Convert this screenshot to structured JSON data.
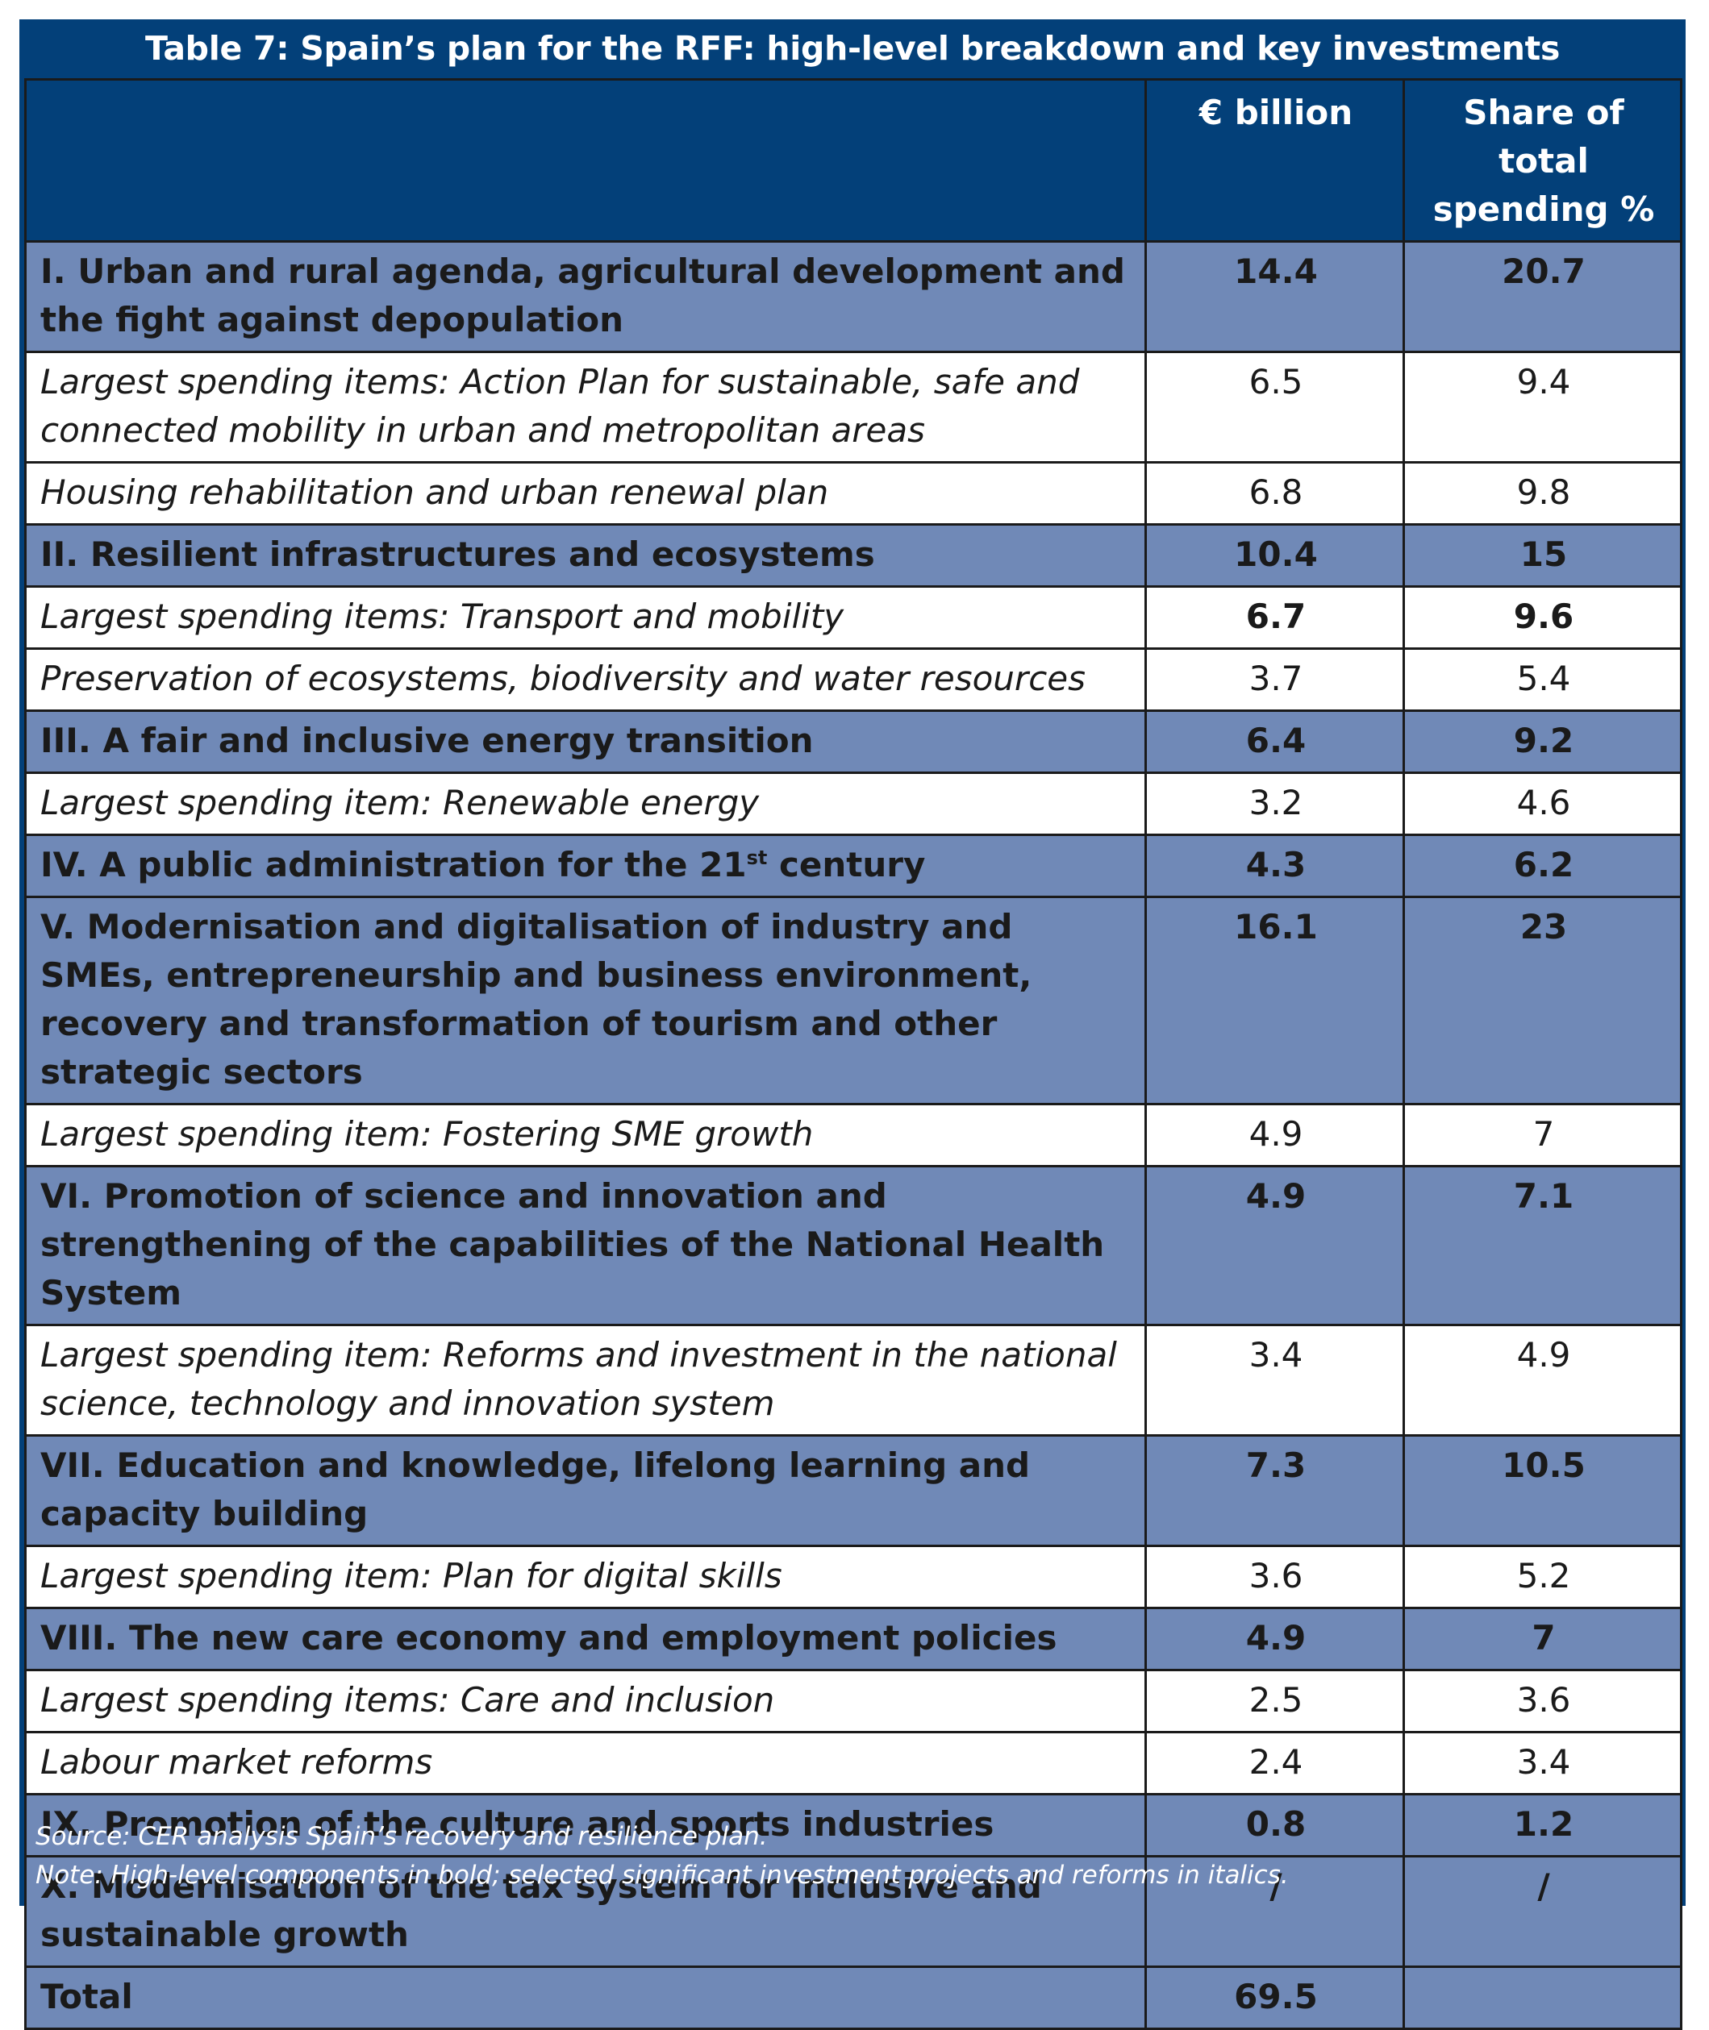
{
  "title": "Table 7: Spain’s plan for the RFF: high-level breakdown and key investments",
  "columns": {
    "label": "",
    "amount": "€ billion",
    "share_line1": "Share of total",
    "share_line2": "spending %"
  },
  "rows": [
    {
      "type": "component",
      "label": "I. Urban and rural agenda, agricultural development and the fight against depopulation",
      "amount": "14.4",
      "share": "20.7"
    },
    {
      "type": "item",
      "label": "Largest spending items: Action Plan for sustainable, safe and connected mobility in urban and metropolitan areas",
      "amount": "6.5",
      "share": "9.4"
    },
    {
      "type": "item",
      "label": "Housing rehabilitation and urban renewal plan",
      "amount": "6.8",
      "share": "9.8"
    },
    {
      "type": "component",
      "label": "II. Resilient infrastructures and ecosystems",
      "amount": "10.4",
      "share": "15"
    },
    {
      "type": "item",
      "label": "Largest spending items: Transport and mobility",
      "amount": "6.7",
      "share": "9.6",
      "bold_values": true
    },
    {
      "type": "item",
      "label": "Preservation of ecosystems, biodiversity and water resources",
      "amount": "3.7",
      "share": "5.4"
    },
    {
      "type": "component",
      "label": "III. A fair and inclusive energy transition",
      "amount": "6.4",
      "share": "9.2"
    },
    {
      "type": "item",
      "label": "Largest spending item: Renewable energy",
      "amount": "3.2",
      "share": "4.6"
    },
    {
      "type": "component",
      "label": "IV. A public administration for the 21",
      "label_sup": "st",
      "label_tail": " century",
      "amount": "4.3",
      "share": "6.2"
    },
    {
      "type": "component",
      "label": "V. Modernisation and digitalisation of industry and SMEs, entrepreneurship and business environment, recovery and transformation of tourism and other strategic sectors",
      "amount": "16.1",
      "share": "23"
    },
    {
      "type": "item",
      "label": "Largest spending item: Fostering SME growth",
      "amount": "4.9",
      "share": "7"
    },
    {
      "type": "component",
      "label": "VI. Promotion of science and innovation and strengthening of the capabilities of the National Health System",
      "amount": "4.9",
      "share": "7.1"
    },
    {
      "type": "item",
      "label": "Largest spending item: Reforms and investment in the national science, technology and innovation system",
      "amount": "3.4",
      "share": "4.9"
    },
    {
      "type": "component",
      "label": "VII. Education and knowledge, lifelong learning and capacity building",
      "amount": "7.3",
      "share": "10.5"
    },
    {
      "type": "item",
      "label": "Largest spending item: Plan for digital skills",
      "amount": "3.6",
      "share": "5.2"
    },
    {
      "type": "component",
      "label": "VIII. The new care economy and employment policies",
      "amount": "4.9",
      "share": "7"
    },
    {
      "type": "item",
      "label": "Largest spending items: Care and inclusion",
      "amount": "2.5",
      "share": "3.6"
    },
    {
      "type": "item",
      "label": "Labour market reforms",
      "amount": "2.4",
      "share": "3.4"
    },
    {
      "type": "component",
      "label": "IX. Promotion of the culture and sports industries",
      "amount": "0.8",
      "share": "1.2"
    },
    {
      "type": "component",
      "label": "X. Modernisation of the tax system for inclusive and sustainable growth",
      "amount": "/",
      "share": "/"
    },
    {
      "type": "total",
      "label": "Total",
      "amount": "69.5",
      "share": ""
    }
  ],
  "notes": {
    "source": "Source: CER analysis Spain’s recovery and resilience plan.",
    "note": "Note: High-level components in bold; selected significant investment projects and reforms in italics."
  },
  "colors": {
    "frame": "#034079",
    "component_row": "#7089b7",
    "item_row": "#ffffff"
  }
}
